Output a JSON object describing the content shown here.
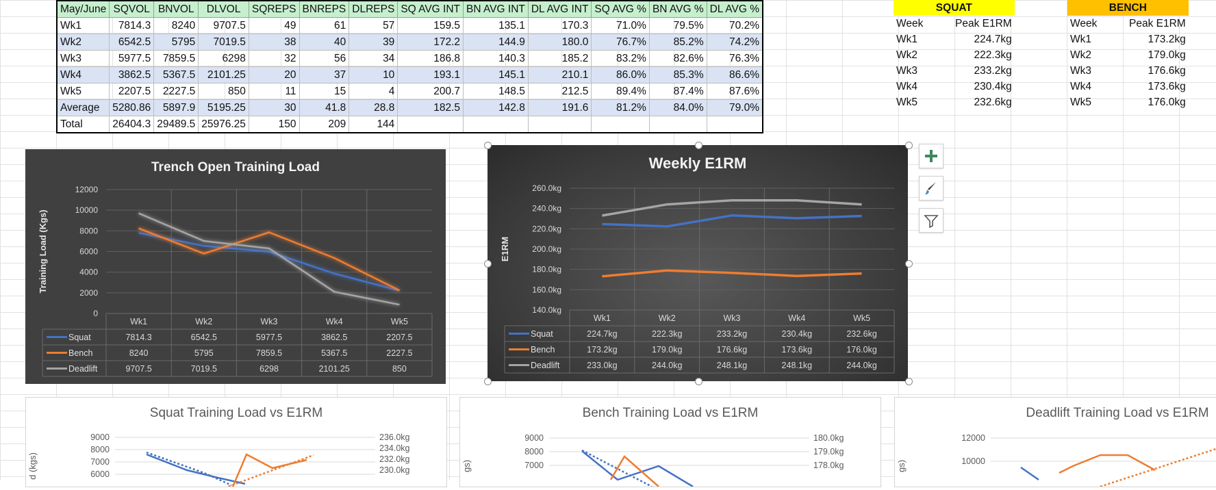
{
  "main_table": {
    "headers": [
      "May/June",
      "SQVOL",
      "BNVOL",
      "DLVOL",
      "SQREPS",
      "BNREPS",
      "DLREPS",
      "SQ AVG INT",
      "BN AVG INT",
      "DL AVG INT",
      "SQ AVG %",
      "BN AVG %",
      "DL AVG %"
    ],
    "rows": [
      [
        "Wk1",
        "7814.3",
        "8240",
        "9707.5",
        "49",
        "61",
        "57",
        "159.5",
        "135.1",
        "170.3",
        "71.0%",
        "79.5%",
        "70.2%"
      ],
      [
        "Wk2",
        "6542.5",
        "5795",
        "7019.5",
        "38",
        "40",
        "39",
        "172.2",
        "144.9",
        "180.0",
        "76.7%",
        "85.2%",
        "74.2%"
      ],
      [
        "Wk3",
        "5977.5",
        "7859.5",
        "6298",
        "32",
        "56",
        "34",
        "186.8",
        "140.3",
        "185.2",
        "83.2%",
        "82.6%",
        "76.3%"
      ],
      [
        "Wk4",
        "3862.5",
        "5367.5",
        "2101.25",
        "20",
        "37",
        "10",
        "193.1",
        "145.1",
        "210.1",
        "86.0%",
        "85.3%",
        "86.6%"
      ],
      [
        "Wk5",
        "2207.5",
        "2227.5",
        "850",
        "11",
        "15",
        "4",
        "200.7",
        "148.5",
        "212.5",
        "89.4%",
        "87.4%",
        "87.6%"
      ],
      [
        "Average",
        "5280.86",
        "5897.9",
        "5195.25",
        "30",
        "41.8",
        "28.8",
        "182.5",
        "142.8",
        "191.6",
        "81.2%",
        "84.0%",
        "79.0%"
      ],
      [
        "Total",
        "26404.3",
        "29489.5",
        "25976.25",
        "150",
        "209",
        "144",
        "",
        "",
        "",
        "",
        "",
        ""
      ]
    ]
  },
  "squat_table": {
    "title": "SQUAT",
    "color": "#ffff00",
    "col_week": "Week",
    "col_peak": "Peak E1RM",
    "rows": [
      [
        "Wk1",
        "224.7kg"
      ],
      [
        "Wk2",
        "222.3kg"
      ],
      [
        "Wk3",
        "233.2kg"
      ],
      [
        "Wk4",
        "230.4kg"
      ],
      [
        "Wk5",
        "232.6kg"
      ]
    ]
  },
  "bench_table": {
    "title": "BENCH",
    "color": "#ffc000",
    "col_week": "Week",
    "col_peak": "Peak E1RM",
    "rows": [
      [
        "Wk1",
        "173.2kg"
      ],
      [
        "Wk2",
        "179.0kg"
      ],
      [
        "Wk3",
        "176.6kg"
      ],
      [
        "Wk4",
        "173.6kg"
      ],
      [
        "Wk5",
        "176.0kg"
      ]
    ]
  },
  "chart_buttons": [
    "plus-icon",
    "brush-icon",
    "filter-icon"
  ],
  "chart_data": [
    {
      "type": "line",
      "title": "Trench Open Training Load",
      "ylabel": "Training Load (Kgs)",
      "xlabel": "",
      "ylim": [
        0,
        12000
      ],
      "yticks": [
        "0",
        "2000",
        "4000",
        "6000",
        "8000",
        "10000",
        "12000"
      ],
      "categories": [
        "Wk1",
        "Wk2",
        "Wk3",
        "Wk4",
        "Wk5"
      ],
      "series": [
        {
          "name": "Squat",
          "color": "#4472c4",
          "values": [
            7814.3,
            6542.5,
            5977.5,
            3862.5,
            2207.5
          ],
          "labels": [
            "7814.3",
            "6542.5",
            "5977.5",
            "3862.5",
            "2207.5"
          ]
        },
        {
          "name": "Bench",
          "color": "#ed7d31",
          "values": [
            8240,
            5795,
            7859.5,
            5367.5,
            2227.5
          ],
          "labels": [
            "8240",
            "5795",
            "7859.5",
            "5367.5",
            "2227.5"
          ]
        },
        {
          "name": "Deadlift",
          "color": "#a5a5a5",
          "values": [
            9707.5,
            7019.5,
            6298,
            2101.25,
            850
          ],
          "labels": [
            "9707.5",
            "7019.5",
            "6298",
            "2101.25",
            "850"
          ]
        }
      ],
      "legend": "data-table"
    },
    {
      "type": "line",
      "title": "Weekly E1RM",
      "ylabel": "E1RM",
      "xlabel": "",
      "ylim": [
        140,
        260
      ],
      "yticks": [
        "140.0kg",
        "160.0kg",
        "180.0kg",
        "200.0kg",
        "220.0kg",
        "240.0kg",
        "260.0kg"
      ],
      "categories": [
        "Wk1",
        "Wk2",
        "Wk3",
        "Wk4",
        "Wk5"
      ],
      "series": [
        {
          "name": "Squat",
          "color": "#4472c4",
          "values": [
            224.7,
            222.3,
            233.2,
            230.4,
            232.6
          ],
          "labels": [
            "224.7kg",
            "222.3kg",
            "233.2kg",
            "230.4kg",
            "232.6kg"
          ]
        },
        {
          "name": "Bench",
          "color": "#ed7d31",
          "values": [
            173.2,
            179.0,
            176.6,
            173.6,
            176.0
          ],
          "labels": [
            "173.2kg",
            "179.0kg",
            "176.6kg",
            "173.6kg",
            "176.0kg"
          ]
        },
        {
          "name": "Deadlift",
          "color": "#a5a5a5",
          "values": [
            233.0,
            244.0,
            248.1,
            248.1,
            244.0
          ],
          "labels": [
            "233.0kg",
            "244.0kg",
            "248.1kg",
            "248.1kg",
            "244.0kg"
          ]
        }
      ],
      "legend": "data-table"
    },
    {
      "type": "line",
      "title": "Squat Training Load vs E1RM",
      "ylabel": "d (kgs)",
      "yticks_left": [
        "6000",
        "7000",
        "8000",
        "9000"
      ],
      "yticks_right": [
        "230.0kg",
        "232.0kg",
        "234.0kg",
        "236.0kg"
      ]
    },
    {
      "type": "line",
      "title": "Bench Training Load vs E1RM",
      "ylabel": "gs)",
      "yticks_left": [
        "7000",
        "8000",
        "9000"
      ],
      "yticks_right": [
        "178.0kg",
        "179.0kg",
        "180.0kg"
      ]
    },
    {
      "type": "line",
      "title": "Deadlift Training Load vs E1RM",
      "ylabel": "gs)",
      "yticks_left": [
        "10000",
        "12000"
      ]
    }
  ]
}
